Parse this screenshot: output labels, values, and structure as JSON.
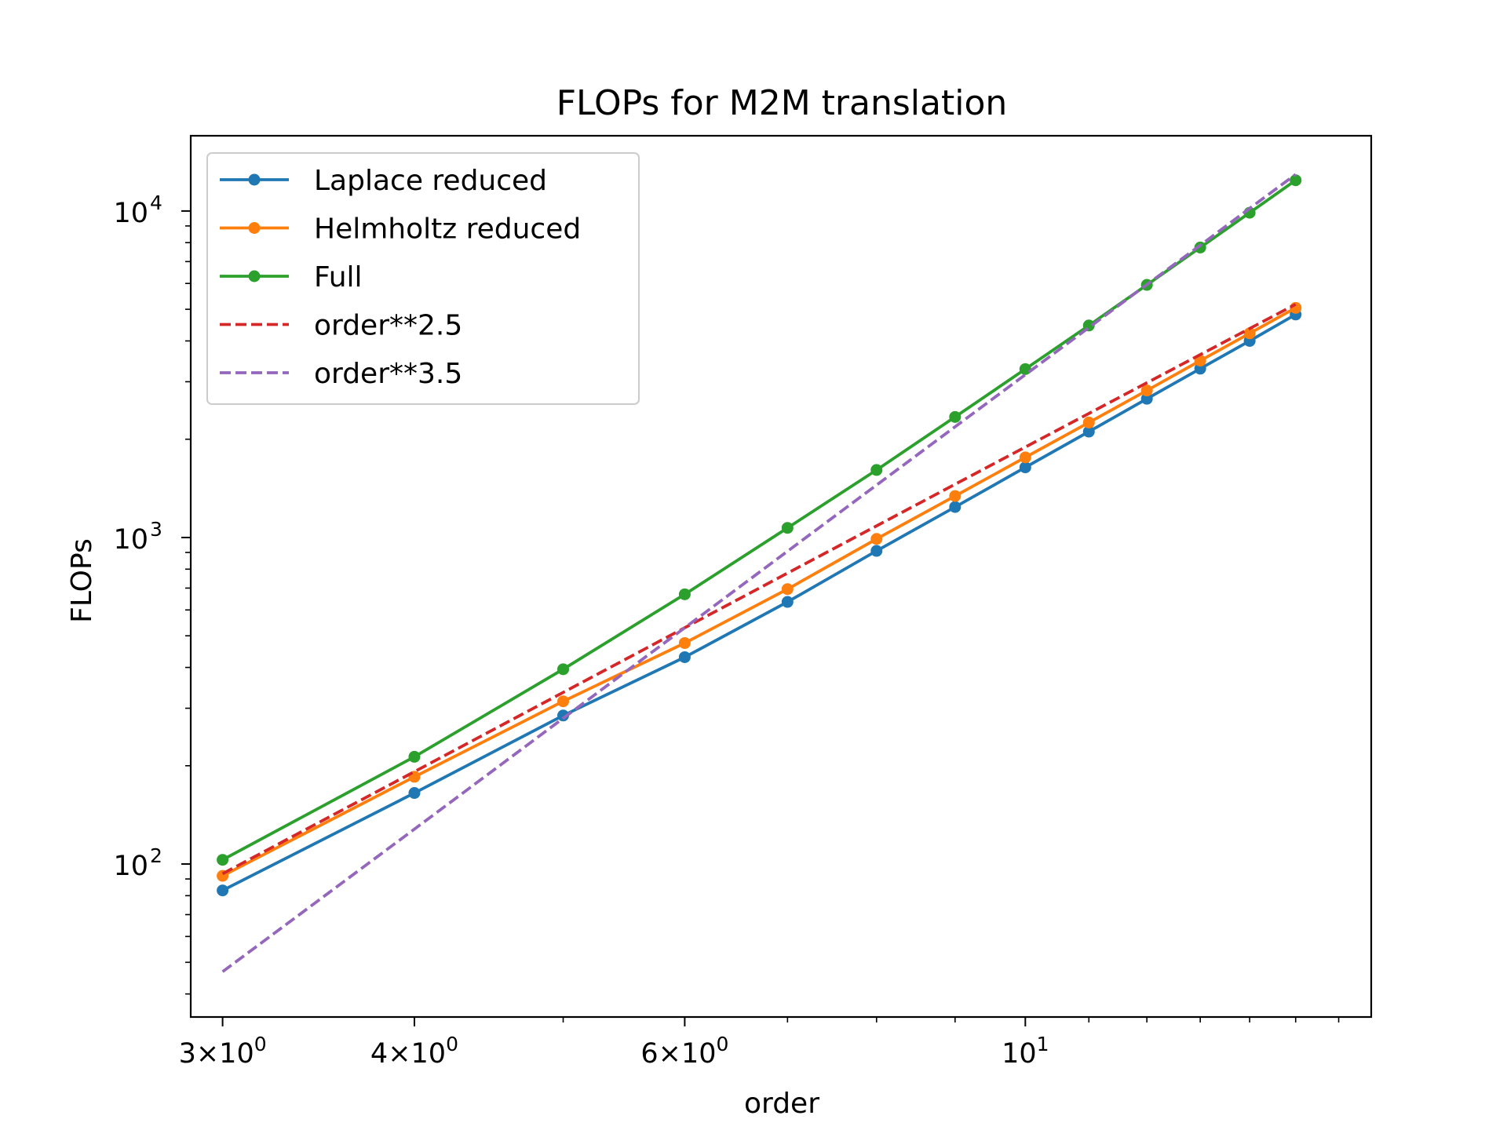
{
  "chart_data": {
    "type": "line",
    "title": "FLOPs for M2M translation",
    "xlabel": "order",
    "ylabel": "FLOPs",
    "xscale": "log",
    "yscale": "log",
    "xlim": [
      2.86,
      16.8
    ],
    "ylim": [
      34,
      17000
    ],
    "grid": false,
    "legend_position": "top-left",
    "x": [
      3,
      4,
      5,
      6,
      7,
      8,
      9,
      10,
      11,
      12,
      13,
      14,
      15
    ],
    "x_ticks": [
      {
        "value": 3,
        "mantissa": "3",
        "exponent": "0"
      },
      {
        "value": 4,
        "mantissa": "4",
        "exponent": "0"
      },
      {
        "value": 6,
        "mantissa": "6",
        "exponent": "0"
      },
      {
        "value": 10,
        "mantissa": "",
        "exponent": "1"
      }
    ],
    "x_minor_ticks": [
      5,
      7,
      8,
      9,
      11,
      12,
      13,
      14,
      15,
      16
    ],
    "y_ticks": [
      {
        "value": 100,
        "exponent": "2"
      },
      {
        "value": 1000,
        "exponent": "3"
      },
      {
        "value": 10000,
        "exponent": "4"
      }
    ],
    "tick_base": "10",
    "tick_times": "×",
    "series": [
      {
        "name": "Laplace reduced",
        "color": "#1f77b4",
        "style": "solid",
        "marker": true,
        "values": [
          83,
          165,
          285,
          430,
          635,
          910,
          1240,
          1640,
          2110,
          2660,
          3290,
          4000,
          4820
        ]
      },
      {
        "name": "Helmholtz reduced",
        "color": "#ff7f0e",
        "style": "solid",
        "marker": true,
        "values": [
          92,
          185,
          315,
          475,
          695,
          990,
          1340,
          1760,
          2250,
          2820,
          3480,
          4220,
          5050
        ]
      },
      {
        "name": "Full",
        "color": "#2ca02c",
        "style": "solid",
        "marker": true,
        "values": [
          103,
          213,
          395,
          670,
          1070,
          1610,
          2340,
          3280,
          4460,
          5940,
          7730,
          9880,
          12420
        ]
      },
      {
        "name": "order**2.5",
        "color": "#d62728",
        "style": "dashed",
        "marker": false,
        "values": [
          93.4,
          191.8,
          335.4,
          529.2,
          777.9,
          1085.4,
          1455.7,
          1892.3,
          2398.2,
          2976.9,
          3631.2,
          4364.4,
          5178.5
        ]
      },
      {
        "name": "order**3.5",
        "color": "#9467bd",
        "style": "dashed",
        "marker": false,
        "values": [
          46.8,
          127.9,
          279.5,
          529.1,
          907.7,
          1447.5,
          2183.4,
          3152.6,
          4395,
          5953,
          7853,
          10185,
          12944
        ]
      }
    ]
  }
}
